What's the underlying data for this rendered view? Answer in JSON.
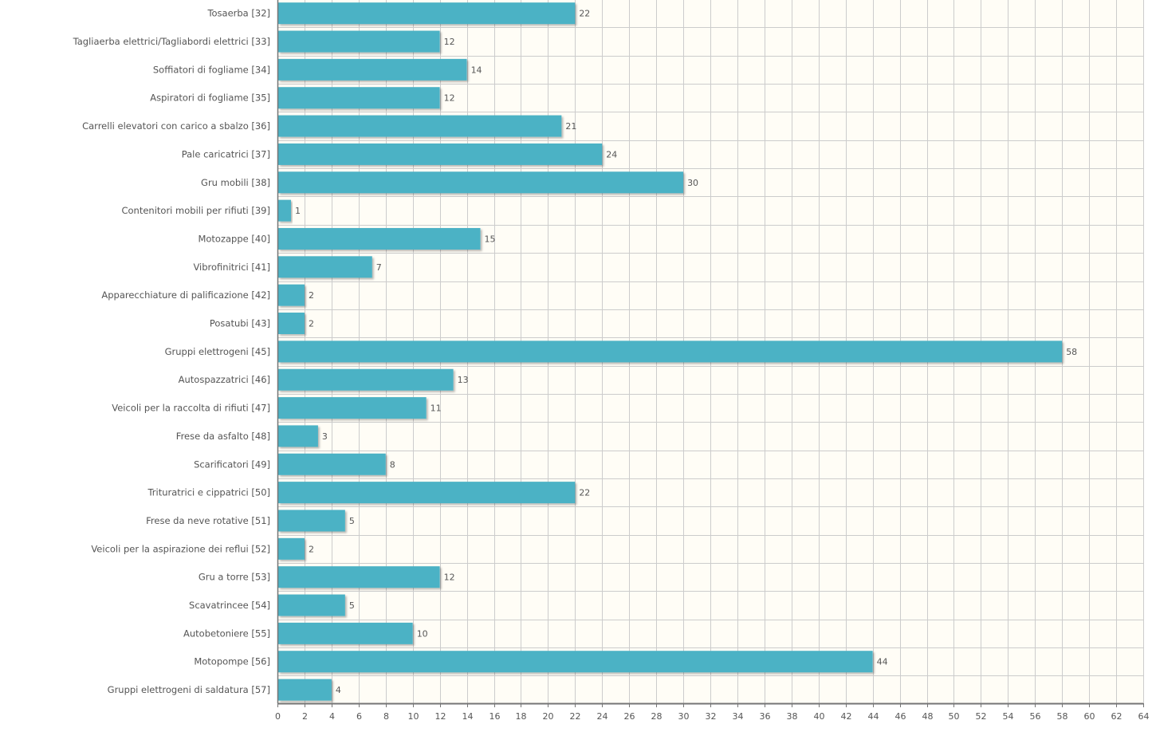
{
  "chart_data": {
    "type": "bar",
    "orientation": "horizontal",
    "title": "",
    "xlabel": "",
    "ylabel": "",
    "xlim": [
      0,
      64
    ],
    "grid": true,
    "x_ticks": [
      0,
      2,
      4,
      6,
      8,
      10,
      12,
      14,
      16,
      18,
      20,
      22,
      24,
      26,
      28,
      30,
      32,
      34,
      36,
      38,
      40,
      42,
      44,
      46,
      48,
      50,
      52,
      54,
      56,
      58,
      60,
      62,
      64
    ],
    "categories": [
      "Tosaerba [32]",
      "Tagliaerba elettrici/Tagliabordi elettrici [33]",
      "Soffiatori di fogliame [34]",
      "Aspiratori di fogliame [35]",
      "Carrelli elevatori con carico a sbalzo [36]",
      "Pale caricatrici [37]",
      "Gru mobili [38]",
      "Contenitori mobili per rifiuti [39]",
      "Motozappe [40]",
      "Vibrofinitrici [41]",
      "Apparecchiature di palificazione [42]",
      "Posatubi [43]",
      "Gruppi elettrogeni [45]",
      "Autospazzatrici [46]",
      "Veicoli per la raccolta di rifiuti [47]",
      "Frese da asfalto [48]",
      "Scarificatori [49]",
      "Trituratrici e cippatrici [50]",
      "Frese da neve rotative [51]",
      "Veicoli per la aspirazione dei reflui [52]",
      "Gru a torre [53]",
      "Scavatrincee [54]",
      "Autobetoniere [55]",
      "Motopompe [56]",
      "Gruppi elettrogeni di saldatura [57]"
    ],
    "values": [
      22,
      12,
      14,
      12,
      21,
      24,
      30,
      1,
      15,
      7,
      2,
      2,
      58,
      13,
      11,
      3,
      8,
      22,
      5,
      2,
      12,
      5,
      10,
      44,
      4
    ],
    "colors": {
      "bar": "#4bb2c5",
      "plot_background": "#fffdf6",
      "grid": "#cccccc",
      "axis": "#757575",
      "label_text": "#555555",
      "bar_shadow": "#000000"
    }
  }
}
